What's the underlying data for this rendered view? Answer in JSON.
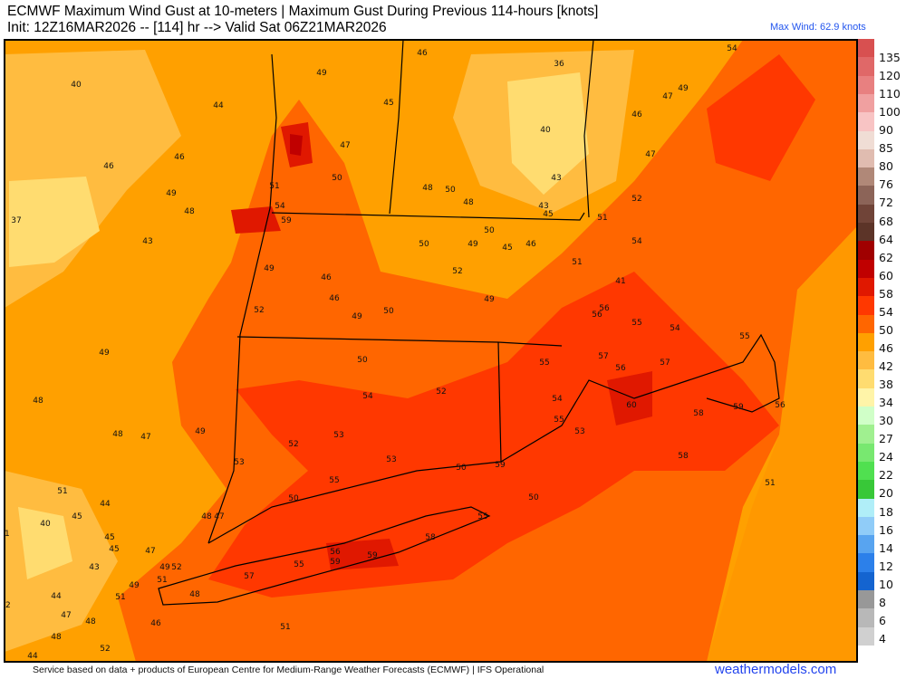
{
  "header": {
    "title_line1": "ECMWF Maximum Wind Gust at 10-meters | Maximum Gust During Previous 114-hours [knots]",
    "title_line2": "Init: 12Z16MAR2026 -- [114] hr --> Valid Sat 06Z21MAR2026",
    "max_wind": "Max Wind: 62.9 knots"
  },
  "colorbar": {
    "labels": [
      "135",
      "120",
      "110",
      "100",
      "90",
      "85",
      "80",
      "76",
      "72",
      "68",
      "64",
      "62",
      "60",
      "58",
      "54",
      "50",
      "46",
      "42",
      "38",
      "34",
      "30",
      "27",
      "24",
      "22",
      "20",
      "18",
      "16",
      "14",
      "12",
      "10",
      "8",
      "6",
      "4"
    ],
    "colors": [
      "#d85050",
      "#e06868",
      "#e88080",
      "#f0a0a0",
      "#f8c4c4",
      "#f0ddd5",
      "#e0bcb0",
      "#b08878",
      "#8c6458",
      "#704438",
      "#5c3428",
      "#a00000",
      "#c00000",
      "#e01800",
      "#ff3800",
      "#ff6600",
      "#ffa000",
      "#ffbc40",
      "#ffdc70",
      "#fff4a8",
      "#d0ffc8",
      "#a0f090",
      "#78e870",
      "#50e050",
      "#38c838",
      "#b0eef8",
      "#90ccf8",
      "#58a4f0",
      "#2c80ea",
      "#1464d0",
      "#989898",
      "#b8b8b8",
      "#d0d0d0"
    ]
  },
  "map": {
    "colors": {
      "base": "#ffa000",
      "band50": "#ff6600",
      "band54": "#ff3800",
      "band58": "#e01800",
      "band60": "#c00000",
      "band42": "#ffbc40",
      "band38": "#ffdc70",
      "ocean": "#ff9800",
      "border": "#000000"
    },
    "station_values": [
      "40",
      "44",
      "49",
      "46",
      "36",
      "54",
      "49",
      "47",
      "46",
      "45",
      "46",
      "46",
      "47",
      "40",
      "47",
      "49",
      "51",
      "50",
      "48",
      "50",
      "43",
      "48",
      "54",
      "48",
      "43",
      "52",
      "37",
      "59",
      "45",
      "51",
      "43",
      "50",
      "49",
      "50",
      "45",
      "46",
      "54",
      "51",
      "49",
      "46",
      "52",
      "41",
      "46",
      "50",
      "49",
      "49",
      "52",
      "56",
      "56",
      "55",
      "54",
      "55",
      "49",
      "50",
      "55",
      "57",
      "56",
      "57",
      "48",
      "54",
      "52",
      "54",
      "60",
      "55",
      "53",
      "58",
      "59",
      "56",
      "48",
      "47",
      "49",
      "53",
      "52",
      "53",
      "53",
      "50",
      "59",
      "58",
      "51",
      "51",
      "55",
      "44",
      "50",
      "50",
      "40",
      "45",
      "48",
      "47",
      "55",
      "41",
      "45",
      "45",
      "47",
      "58",
      "43",
      "49",
      "52",
      "56",
      "59",
      "59",
      "55",
      "57",
      "51",
      "49",
      "44",
      "51",
      "48",
      "42",
      "47",
      "48",
      "46",
      "51",
      "48",
      "52",
      "44"
    ]
  },
  "footer": {
    "credit": "Service based on data + products of European Centre for Medium-Range Weather Forecasts (ECMWF) | IFS Operational",
    "site": "weathermodels.com"
  }
}
